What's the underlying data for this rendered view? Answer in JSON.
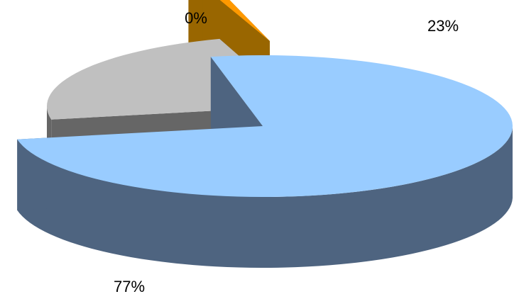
{
  "chart_data": {
    "type": "pie",
    "style": "3d-exploded",
    "categories": [
      "",
      "",
      ""
    ],
    "values": [
      77,
      23,
      0
    ],
    "labels": [
      "77%",
      "23%",
      "0%"
    ],
    "colors": {
      "top": [
        "#99ccff",
        "#c0c0c0",
        "#ff9900"
      ],
      "side": [
        "#4e6480",
        "#666666",
        "#996600"
      ]
    },
    "legend": "none"
  }
}
